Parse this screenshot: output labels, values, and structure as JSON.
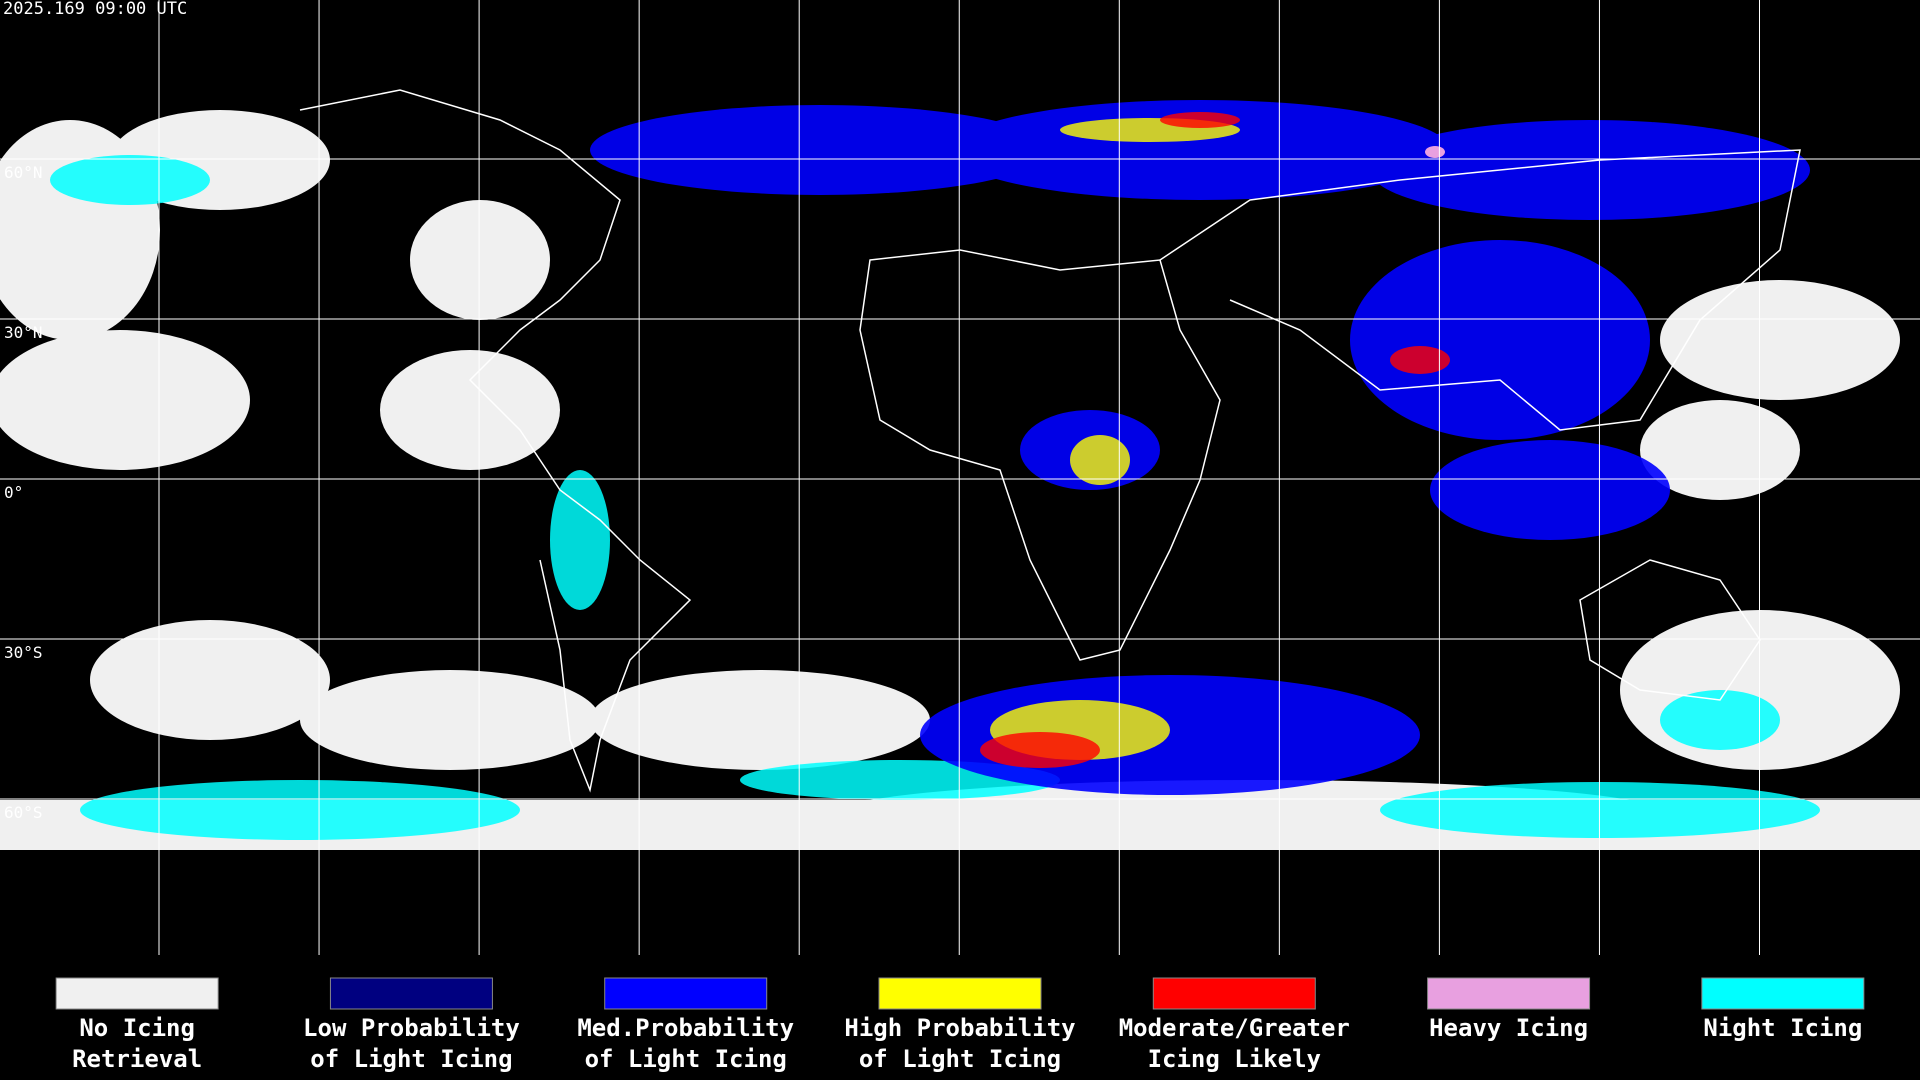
{
  "header": {
    "timestamp": "2025.169 09:00 UTC"
  },
  "map": {
    "lat_labels": [
      "60°N",
      "30°N",
      "0°",
      "30°S",
      "60°S"
    ]
  },
  "legend": {
    "items": [
      {
        "lines": [
          "No Icing",
          "Retrieval"
        ],
        "color": "#f0f0f0"
      },
      {
        "lines": [
          "Low Probability",
          "of Light Icing"
        ],
        "color": "#000080"
      },
      {
        "lines": [
          "Med.Probability",
          "of Light Icing"
        ],
        "color": "#0000ff"
      },
      {
        "lines": [
          "High Probability",
          "of Light Icing"
        ],
        "color": "#ffff00"
      },
      {
        "lines": [
          "Moderate/Greater",
          "Icing Likely"
        ],
        "color": "#ff0000"
      },
      {
        "lines": [
          "Heavy Icing"
        ],
        "color": "#e8a0e0"
      },
      {
        "lines": [
          "Night Icing"
        ],
        "color": "#00ffff"
      }
    ]
  }
}
